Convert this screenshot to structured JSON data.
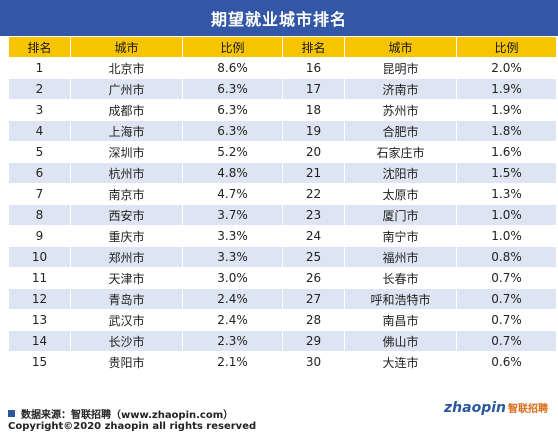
{
  "title": "期望就业城市排名",
  "headers": [
    "排名",
    "城市",
    "比例",
    "排名",
    "城市",
    "比例"
  ],
  "chart_data": {
    "type": "table",
    "title": "期望就业城市排名",
    "columns": [
      "排名",
      "城市",
      "比例"
    ],
    "rows": [
      {
        "rank": "1",
        "city": "北京市",
        "pct": "8.6%"
      },
      {
        "rank": "2",
        "city": "广州市",
        "pct": "6.3%"
      },
      {
        "rank": "3",
        "city": "成都市",
        "pct": "6.3%"
      },
      {
        "rank": "4",
        "city": "上海市",
        "pct": "6.3%"
      },
      {
        "rank": "5",
        "city": "深圳市",
        "pct": "5.2%"
      },
      {
        "rank": "6",
        "city": "杭州市",
        "pct": "4.8%"
      },
      {
        "rank": "7",
        "city": "南京市",
        "pct": "4.7%"
      },
      {
        "rank": "8",
        "city": "西安市",
        "pct": "3.7%"
      },
      {
        "rank": "9",
        "city": "重庆市",
        "pct": "3.3%"
      },
      {
        "rank": "10",
        "city": "郑州市",
        "pct": "3.3%"
      },
      {
        "rank": "11",
        "city": "天津市",
        "pct": "3.0%"
      },
      {
        "rank": "12",
        "city": "青岛市",
        "pct": "2.4%"
      },
      {
        "rank": "13",
        "city": "武汉市",
        "pct": "2.4%"
      },
      {
        "rank": "14",
        "city": "长沙市",
        "pct": "2.3%"
      },
      {
        "rank": "15",
        "city": "贵阳市",
        "pct": "2.1%"
      },
      {
        "rank": "16",
        "city": "昆明市",
        "pct": "2.0%"
      },
      {
        "rank": "17",
        "city": "济南市",
        "pct": "1.9%"
      },
      {
        "rank": "18",
        "city": "苏州市",
        "pct": "1.9%"
      },
      {
        "rank": "19",
        "city": "合肥市",
        "pct": "1.8%"
      },
      {
        "rank": "20",
        "city": "石家庄市",
        "pct": "1.6%"
      },
      {
        "rank": "21",
        "city": "沈阳市",
        "pct": "1.5%"
      },
      {
        "rank": "22",
        "city": "太原市",
        "pct": "1.3%"
      },
      {
        "rank": "23",
        "city": "厦门市",
        "pct": "1.0%"
      },
      {
        "rank": "24",
        "city": "南宁市",
        "pct": "1.0%"
      },
      {
        "rank": "25",
        "city": "福州市",
        "pct": "0.8%"
      },
      {
        "rank": "26",
        "city": "长春市",
        "pct": "0.7%"
      },
      {
        "rank": "27",
        "city": "呼和浩特市",
        "pct": "0.7%"
      },
      {
        "rank": "28",
        "city": "南昌市",
        "pct": "0.7%"
      },
      {
        "rank": "29",
        "city": "佛山市",
        "pct": "0.7%"
      },
      {
        "rank": "30",
        "city": "大连市",
        "pct": "0.6%"
      }
    ]
  },
  "footer": {
    "source": "数据来源：智联招聘（www.zhaopin.com）",
    "copyright": "Copyright©2020 zhaopin all rights reserved",
    "brand_latin": "zhaopin",
    "brand_cn": "智联招聘"
  },
  "colors": {
    "title_bg": "#3157a6",
    "header_bg": "#f6c400",
    "row_alt_bg": "#dde5f3",
    "square": "#2d56a0"
  }
}
